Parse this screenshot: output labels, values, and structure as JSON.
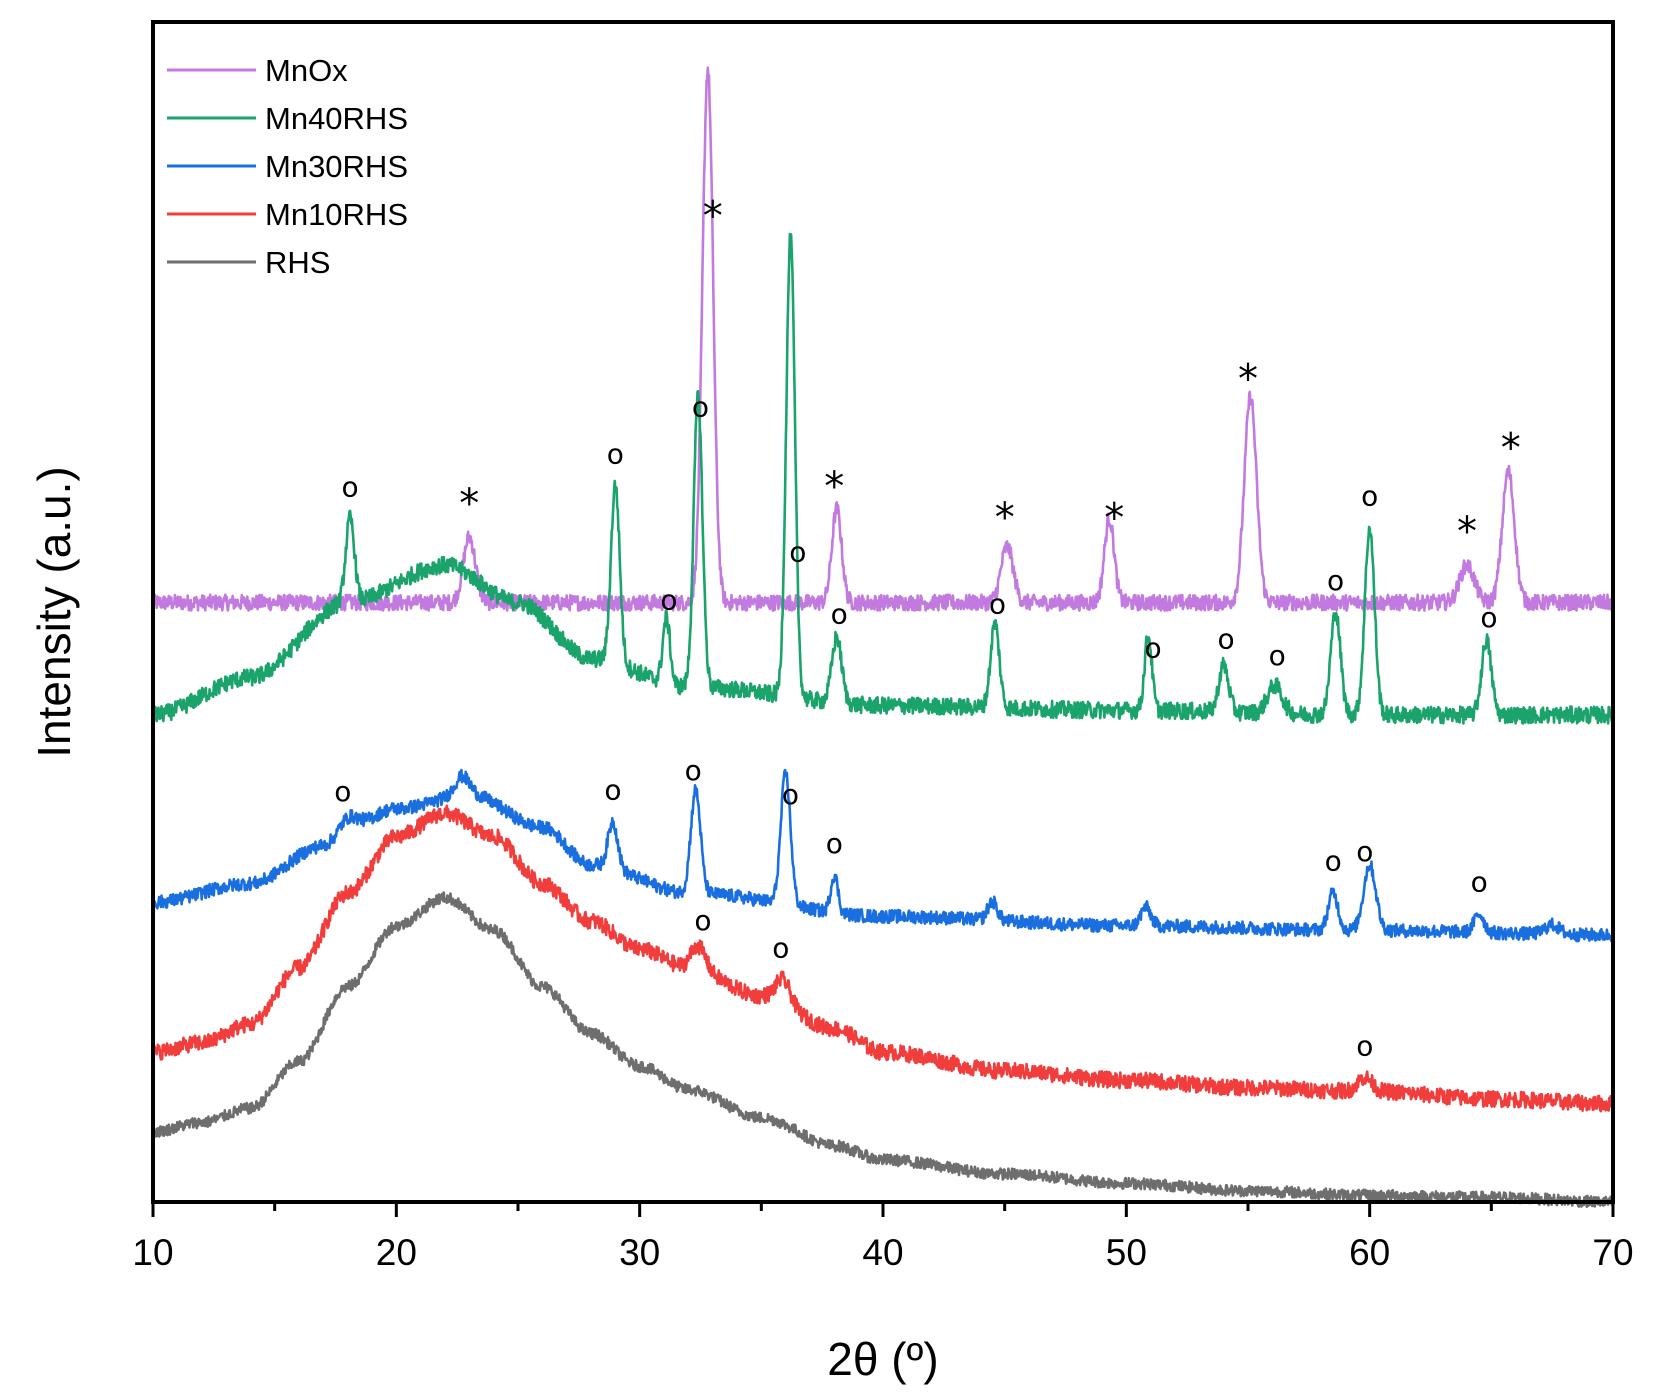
{
  "chart_data": {
    "type": "line",
    "title": "",
    "xlabel": "2θ (º)",
    "ylabel": "Intensity (a.u.)",
    "xlim": [
      10,
      70
    ],
    "x_ticks": [
      10,
      20,
      30,
      40,
      50,
      60,
      70
    ],
    "y_ticks": [],
    "legend_position": "top-left",
    "series": [
      {
        "name": "MnOx",
        "color": "#c27ae0",
        "baseline": 6.4,
        "background": [
          [
            10,
            0
          ],
          [
            70,
            0
          ]
        ],
        "peaks": [
          [
            23.0,
            0.7,
            0.25
          ],
          [
            32.8,
            5.7,
            0.22
          ],
          [
            38.1,
            1.0,
            0.2
          ],
          [
            45.1,
            0.6,
            0.25
          ],
          [
            49.3,
            0.9,
            0.2
          ],
          [
            55.1,
            2.2,
            0.25
          ],
          [
            64.0,
            0.4,
            0.3
          ],
          [
            65.7,
            1.4,
            0.25
          ]
        ],
        "noise": 0.17,
        "markers": [
          {
            "x": 23.0,
            "symbol": "*"
          },
          {
            "x": 33.0,
            "symbol": "*"
          },
          {
            "x": 38.0,
            "symbol": "*"
          },
          {
            "x": 45.0,
            "symbol": "*"
          },
          {
            "x": 49.5,
            "symbol": "*"
          },
          {
            "x": 55.0,
            "symbol": "*"
          },
          {
            "x": 64.0,
            "symbol": "*"
          },
          {
            "x": 65.8,
            "symbol": "*"
          }
        ]
      },
      {
        "name": "Mn40RHS",
        "color": "#1aa36b",
        "baseline": 0.0,
        "background": [
          [
            10,
            5.2
          ],
          [
            14,
            5.6
          ],
          [
            18,
            6.4
          ],
          [
            22,
            6.8
          ],
          [
            25,
            6.4
          ],
          [
            28,
            5.8
          ],
          [
            32,
            5.5
          ],
          [
            40,
            5.3
          ],
          [
            50,
            5.25
          ],
          [
            60,
            5.2
          ],
          [
            70,
            5.2
          ]
        ],
        "peaks": [
          [
            18.1,
            0.9,
            0.18
          ],
          [
            29.0,
            1.9,
            0.18
          ],
          [
            31.1,
            0.7,
            0.15
          ],
          [
            32.4,
            3.1,
            0.18
          ],
          [
            36.2,
            4.9,
            0.18
          ],
          [
            38.1,
            0.7,
            0.2
          ],
          [
            44.6,
            0.9,
            0.18
          ],
          [
            50.9,
            0.8,
            0.15
          ],
          [
            54.0,
            0.5,
            0.2
          ],
          [
            56.1,
            0.3,
            0.3
          ],
          [
            58.6,
            1.1,
            0.2
          ],
          [
            60.0,
            2.0,
            0.2
          ],
          [
            64.8,
            0.8,
            0.2
          ]
        ],
        "noise": 0.18,
        "markers": [
          {
            "x": 18.1,
            "symbol": "o"
          },
          {
            "x": 29.0,
            "symbol": "o"
          },
          {
            "x": 31.2,
            "symbol": "o"
          },
          {
            "x": 32.5,
            "symbol": "o"
          },
          {
            "x": 36.5,
            "symbol": "o"
          },
          {
            "x": 38.2,
            "symbol": "o"
          },
          {
            "x": 44.7,
            "symbol": "o"
          },
          {
            "x": 51.1,
            "symbol": "o"
          },
          {
            "x": 54.1,
            "symbol": "o"
          },
          {
            "x": 56.2,
            "symbol": "o"
          },
          {
            "x": 58.6,
            "symbol": "o"
          },
          {
            "x": 60.0,
            "symbol": "o"
          },
          {
            "x": 64.9,
            "symbol": "o"
          }
        ]
      },
      {
        "name": "Mn30RHS",
        "color": "#1a6fe0",
        "baseline": 0.0,
        "background": [
          [
            10,
            3.2
          ],
          [
            14,
            3.4
          ],
          [
            17,
            3.8
          ],
          [
            20,
            4.2
          ],
          [
            23,
            4.35
          ],
          [
            26,
            4.0
          ],
          [
            28,
            3.6
          ],
          [
            32,
            3.3
          ],
          [
            40,
            3.05
          ],
          [
            50,
            2.95
          ],
          [
            60,
            2.9
          ],
          [
            70,
            2.85
          ]
        ],
        "peaks": [
          [
            18.0,
            0.2,
            0.4
          ],
          [
            22.7,
            0.2,
            0.3
          ],
          [
            28.9,
            0.5,
            0.2
          ],
          [
            32.3,
            1.1,
            0.2
          ],
          [
            36.0,
            1.4,
            0.2
          ],
          [
            38.0,
            0.4,
            0.15
          ],
          [
            44.5,
            0.2,
            0.2
          ],
          [
            50.8,
            0.2,
            0.2
          ],
          [
            58.5,
            0.4,
            0.2
          ],
          [
            60.0,
            0.7,
            0.25
          ],
          [
            64.5,
            0.2,
            0.2
          ],
          [
            67.5,
            0.1,
            0.3
          ]
        ],
        "noise": 0.14,
        "markers": [
          {
            "x": 17.8,
            "symbol": "o"
          },
          {
            "x": 28.9,
            "symbol": "o"
          },
          {
            "x": 32.2,
            "symbol": "o"
          },
          {
            "x": 36.2,
            "symbol": "o"
          },
          {
            "x": 38.0,
            "symbol": "o"
          },
          {
            "x": 58.5,
            "symbol": "o"
          },
          {
            "x": 59.8,
            "symbol": "o"
          },
          {
            "x": 64.5,
            "symbol": "o"
          }
        ]
      },
      {
        "name": "Mn10RHS",
        "color": "#f23d3d",
        "baseline": 0.0,
        "background": [
          [
            10,
            1.6
          ],
          [
            12,
            1.7
          ],
          [
            14,
            1.9
          ],
          [
            16,
            2.5
          ],
          [
            18,
            3.3
          ],
          [
            20,
            3.9
          ],
          [
            22,
            4.15
          ],
          [
            24,
            3.9
          ],
          [
            26,
            3.4
          ],
          [
            28,
            3.0
          ],
          [
            30,
            2.7
          ],
          [
            32,
            2.5
          ],
          [
            35,
            2.2
          ],
          [
            38,
            1.85
          ],
          [
            40,
            1.6
          ],
          [
            45,
            1.4
          ],
          [
            50,
            1.3
          ],
          [
            55,
            1.22
          ],
          [
            60,
            1.18
          ],
          [
            65,
            1.1
          ],
          [
            70,
            1.05
          ]
        ],
        "peaks": [
          [
            32.4,
            0.25,
            0.3
          ],
          [
            35.9,
            0.25,
            0.3
          ],
          [
            59.8,
            0.15,
            0.3
          ]
        ],
        "noise": 0.17,
        "markers": [
          {
            "x": 32.6,
            "symbol": "o"
          },
          {
            "x": 35.8,
            "symbol": "o"
          },
          {
            "x": 59.8,
            "symbol": "o"
          }
        ]
      },
      {
        "name": "RHS",
        "color": "#6e6e6e",
        "baseline": 0.0,
        "background": [
          [
            10,
            0.75
          ],
          [
            12,
            0.85
          ],
          [
            14,
            1.0
          ],
          [
            16,
            1.5
          ],
          [
            18,
            2.3
          ],
          [
            20,
            2.95
          ],
          [
            22,
            3.25
          ],
          [
            24,
            2.9
          ],
          [
            26,
            2.3
          ],
          [
            28,
            1.8
          ],
          [
            30,
            1.45
          ],
          [
            32,
            1.2
          ],
          [
            35,
            0.9
          ],
          [
            38,
            0.6
          ],
          [
            40,
            0.45
          ],
          [
            45,
            0.3
          ],
          [
            50,
            0.2
          ],
          [
            55,
            0.12
          ],
          [
            60,
            0.07
          ],
          [
            65,
            0.05
          ],
          [
            70,
            0.0
          ]
        ],
        "peaks": [],
        "noise": 0.12,
        "markers": []
      }
    ]
  }
}
